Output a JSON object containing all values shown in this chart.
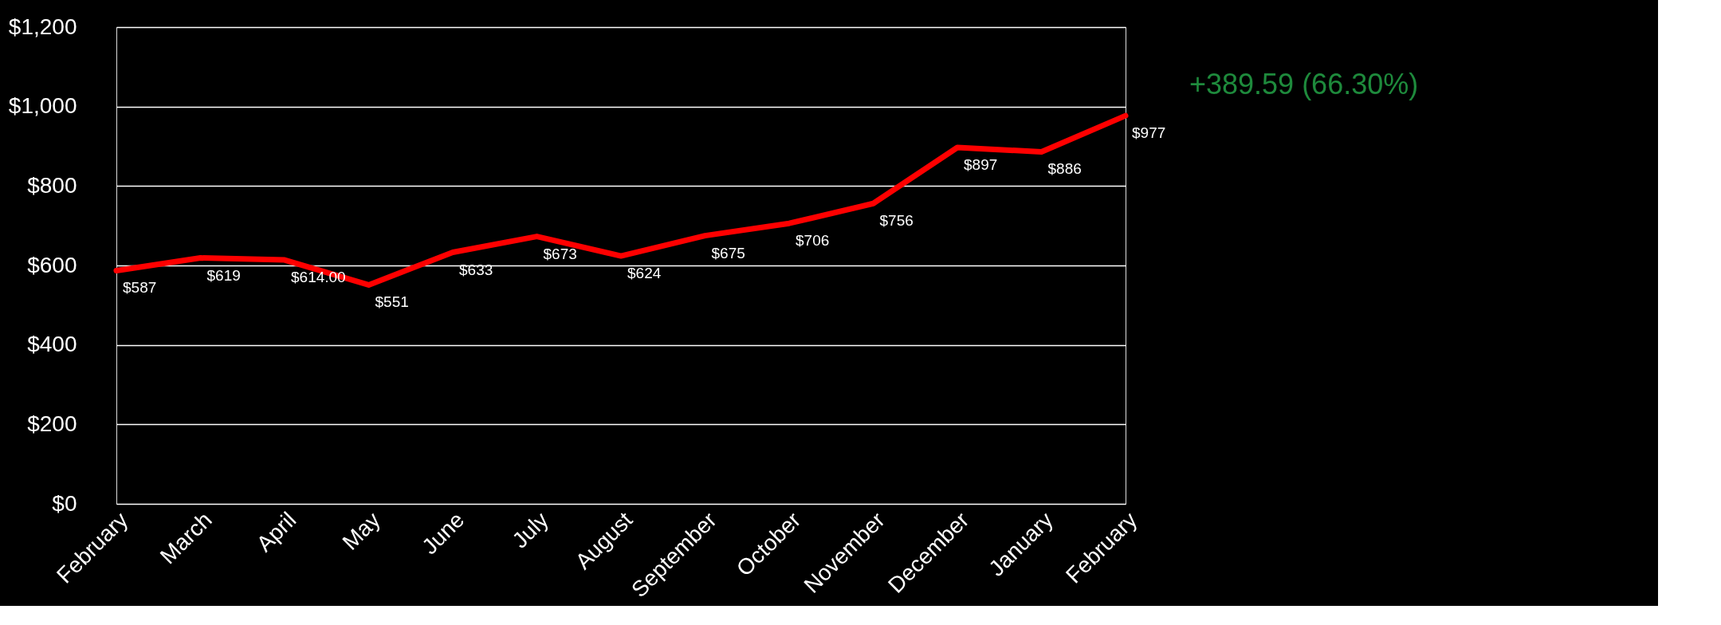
{
  "chart_data": {
    "type": "line",
    "categories": [
      "February",
      "March",
      "April",
      "May",
      "June",
      "July",
      "August",
      "September",
      "October",
      "November",
      "December",
      "January",
      "February"
    ],
    "series": [
      {
        "color": "#ff0000",
        "values": [
          587,
          619,
          614,
          551,
          633,
          673,
          624,
          675,
          706,
          756,
          897,
          886,
          977
        ],
        "value_labels": [
          "$587",
          "$619",
          "$614.00",
          "$551",
          "$633",
          "$673",
          "$624",
          "$675",
          "$706",
          "$756",
          "$897",
          "$886",
          "$977"
        ]
      }
    ],
    "ylim": [
      0,
      1200
    ],
    "yticks": [
      {
        "value": 0,
        "label": "$0"
      },
      {
        "value": 200,
        "label": "$200"
      },
      {
        "value": 400,
        "label": "$400"
      },
      {
        "value": 600,
        "label": "$600"
      },
      {
        "value": 800,
        "label": "$800"
      },
      {
        "value": 1000,
        "label": "$1,000"
      },
      {
        "value": 1200,
        "label": "$1,200"
      }
    ],
    "grid": "y",
    "marker": "none",
    "line_style": "solid",
    "annotations": [
      "+389.59 (66.30%)"
    ]
  }
}
